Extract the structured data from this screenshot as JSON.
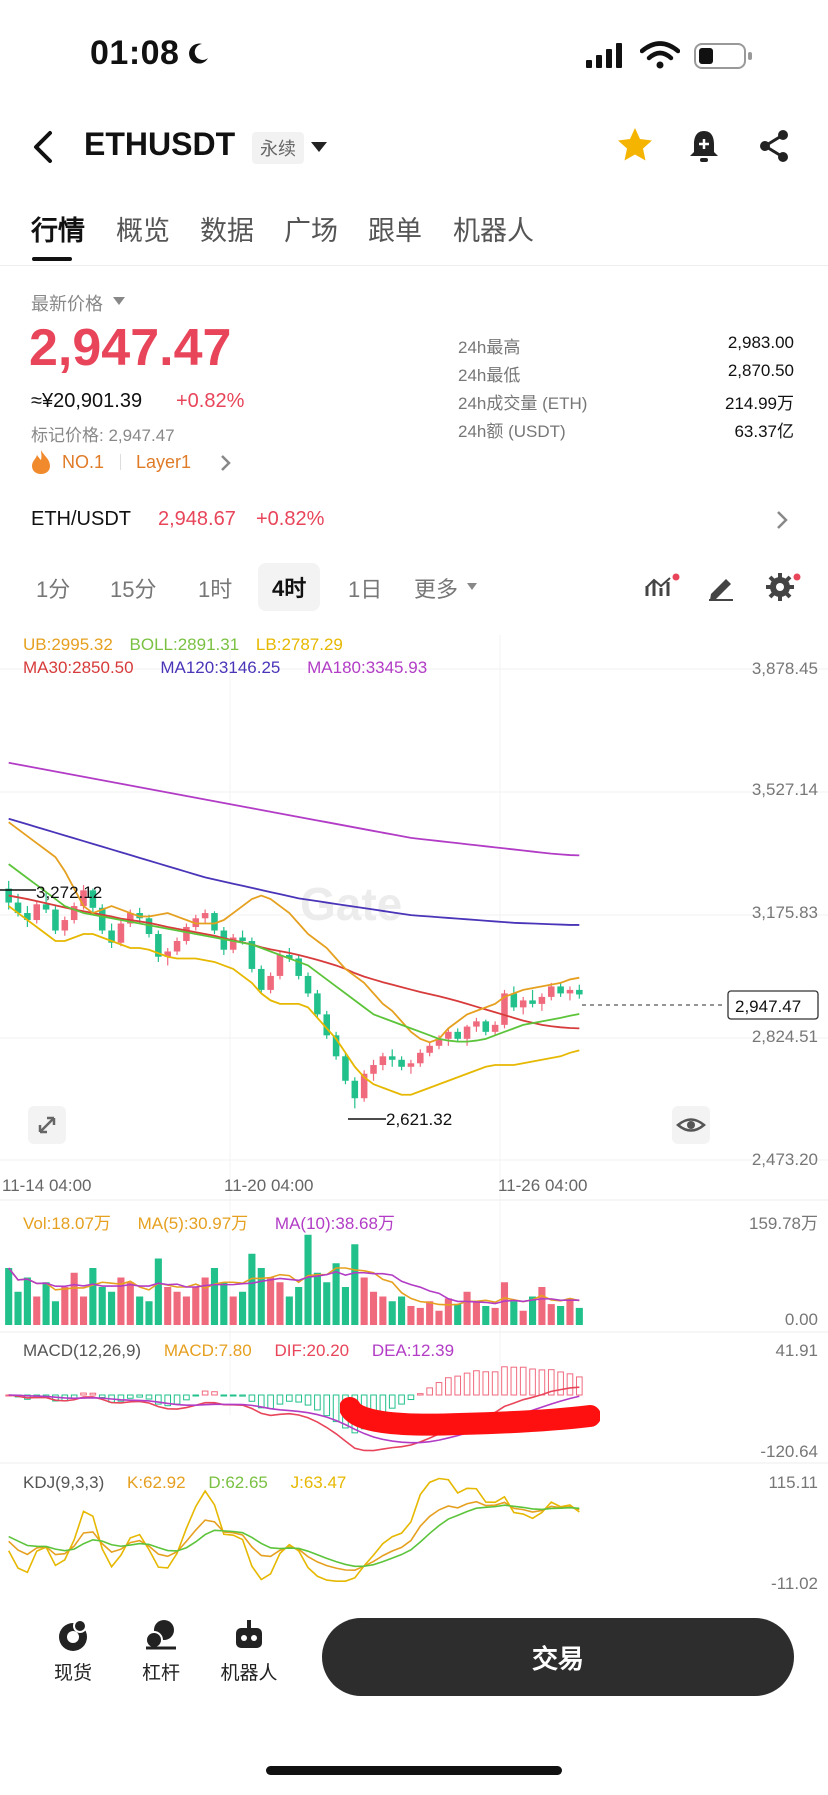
{
  "status_bar": {
    "time": "01:08"
  },
  "header": {
    "symbol": "ETHUSDT",
    "contract_tag": "永续"
  },
  "tabs": [
    {
      "label": "行情",
      "active": true
    },
    {
      "label": "概览"
    },
    {
      "label": "数据"
    },
    {
      "label": "广场"
    },
    {
      "label": "跟单"
    },
    {
      "label": "机器人"
    }
  ],
  "price": {
    "section_label": "最新价格",
    "last": "2,947.47",
    "cny": "≈¥20,901.39",
    "change": "+0.82%",
    "mark_price": "标记价格: 2,947.47",
    "rank": "NO.1",
    "category": "Layer1"
  },
  "stats": [
    {
      "label": "24h最高",
      "value": "2,983.00"
    },
    {
      "label": "24h最低",
      "value": "2,870.50"
    },
    {
      "label": "24h成交量 (ETH)",
      "value": "214.99万"
    },
    {
      "label": "24h额 (USDT)",
      "value": "63.37亿"
    }
  ],
  "spot": {
    "pair": "ETH/USDT",
    "price": "2,948.67",
    "change": "+0.82%"
  },
  "timeframes": [
    "1分",
    "15分",
    "1时",
    "4时",
    "1日",
    "更多"
  ],
  "active_timeframe": "4时",
  "indicators": {
    "boll": {
      "ub": "UB:2995.32",
      "boll": "BOLL:2891.31",
      "lb": "LB:2787.29"
    },
    "ma": {
      "ma30": "MA30:2850.50",
      "ma120": "MA120:3146.25",
      "ma180": "MA180:3345.93"
    },
    "vol": {
      "vol": "Vol:18.07万",
      "ma5": "MA(5):30.97万",
      "ma10": "MA(10):38.68万"
    },
    "macd": {
      "name": "MACD(12,26,9)",
      "macd": "MACD:7.80",
      "dif": "DIF:20.20",
      "dea": "DEA:12.39"
    },
    "kdj": {
      "name": "KDJ(9,3,3)",
      "k": "K:62.92",
      "d": "D:62.65",
      "j": "J:63.47"
    }
  },
  "chart_data": {
    "type": "candlestick",
    "price_axis": [
      "3,878.45",
      "3,527.14",
      "3,175.83",
      "2,824.51",
      "2,473.20"
    ],
    "x_ticks": [
      "11-14 04:00",
      "11-20 04:00",
      "11-26 04:00"
    ],
    "current_price_label": "2,947.47",
    "high_marker": "3,272.12",
    "low_marker": "2,621.32",
    "vol_axis": [
      "159.78万",
      "0.00"
    ],
    "macd_axis": [
      "41.91",
      "-120.64"
    ],
    "kdj_axis": [
      "115.11",
      "-11.02"
    ],
    "ylim": [
      2473.2,
      3878.45
    ],
    "ohlc": [
      [
        3250,
        3272,
        3190,
        3210
      ],
      [
        3210,
        3235,
        3170,
        3180
      ],
      [
        3180,
        3200,
        3140,
        3160
      ],
      [
        3160,
        3215,
        3150,
        3205
      ],
      [
        3205,
        3240,
        3180,
        3190
      ],
      [
        3190,
        3200,
        3120,
        3130
      ],
      [
        3130,
        3170,
        3115,
        3160
      ],
      [
        3160,
        3210,
        3150,
        3200
      ],
      [
        3200,
        3260,
        3190,
        3245
      ],
      [
        3245,
        3250,
        3180,
        3195
      ],
      [
        3195,
        3205,
        3120,
        3130
      ],
      [
        3130,
        3150,
        3080,
        3095
      ],
      [
        3095,
        3160,
        3085,
        3150
      ],
      [
        3150,
        3190,
        3140,
        3180
      ],
      [
        3180,
        3195,
        3150,
        3165
      ],
      [
        3165,
        3175,
        3110,
        3120
      ],
      [
        3120,
        3130,
        3040,
        3055
      ],
      [
        3055,
        3080,
        3030,
        3070
      ],
      [
        3070,
        3110,
        3060,
        3100
      ],
      [
        3100,
        3150,
        3090,
        3140
      ],
      [
        3140,
        3175,
        3130,
        3165
      ],
      [
        3165,
        3190,
        3150,
        3180
      ],
      [
        3180,
        3185,
        3120,
        3130
      ],
      [
        3130,
        3140,
        3060,
        3075
      ],
      [
        3075,
        3120,
        3065,
        3110
      ],
      [
        3110,
        3130,
        3090,
        3100
      ],
      [
        3100,
        3110,
        3010,
        3020
      ],
      [
        3020,
        3030,
        2950,
        2960
      ],
      [
        2960,
        3010,
        2950,
        3000
      ],
      [
        3000,
        3070,
        2990,
        3060
      ],
      [
        3060,
        3080,
        3040,
        3050
      ],
      [
        3050,
        3060,
        2990,
        3000
      ],
      [
        3000,
        3010,
        2940,
        2950
      ],
      [
        2950,
        2960,
        2880,
        2890
      ],
      [
        2890,
        2900,
        2820,
        2830
      ],
      [
        2830,
        2840,
        2760,
        2770
      ],
      [
        2770,
        2780,
        2690,
        2700
      ],
      [
        2700,
        2710,
        2621,
        2650
      ],
      [
        2650,
        2730,
        2640,
        2720
      ],
      [
        2720,
        2760,
        2700,
        2745
      ],
      [
        2745,
        2780,
        2730,
        2770
      ],
      [
        2770,
        2790,
        2740,
        2760
      ],
      [
        2760,
        2770,
        2730,
        2740
      ],
      [
        2740,
        2760,
        2720,
        2750
      ],
      [
        2750,
        2790,
        2740,
        2780
      ],
      [
        2780,
        2810,
        2770,
        2800
      ],
      [
        2800,
        2830,
        2790,
        2820
      ],
      [
        2820,
        2850,
        2800,
        2840
      ],
      [
        2840,
        2850,
        2810,
        2820
      ],
      [
        2820,
        2860,
        2800,
        2855
      ],
      [
        2855,
        2880,
        2840,
        2870
      ],
      [
        2870,
        2875,
        2830,
        2840
      ],
      [
        2840,
        2870,
        2830,
        2860
      ],
      [
        2860,
        2960,
        2850,
        2950
      ],
      [
        2950,
        2970,
        2900,
        2910
      ],
      [
        2910,
        2940,
        2890,
        2930
      ],
      [
        2930,
        2960,
        2910,
        2920
      ],
      [
        2920,
        2950,
        2900,
        2940
      ],
      [
        2940,
        2980,
        2930,
        2970
      ],
      [
        2970,
        2983,
        2940,
        2950
      ],
      [
        2950,
        2970,
        2930,
        2960
      ],
      [
        2960,
        2975,
        2935,
        2947
      ]
    ],
    "ma30": [
      3230,
      3225,
      3220,
      3214,
      3208,
      3202,
      3196,
      3190,
      3185,
      3180,
      3175,
      3170,
      3164,
      3160,
      3156,
      3152,
      3146,
      3140,
      3135,
      3130,
      3125,
      3120,
      3115,
      3108,
      3102,
      3096,
      3090,
      3082,
      3076,
      3071,
      3066,
      3060,
      3053,
      3046,
      3038,
      3030,
      3020,
      3008,
      2998,
      2990,
      2982,
      2975,
      2968,
      2961,
      2954,
      2948,
      2942,
      2935,
      2928,
      2920,
      2912,
      2904,
      2896,
      2888,
      2880,
      2872,
      2866,
      2860,
      2856,
      2853,
      2851,
      2850
    ],
    "ma120": [
      3450,
      3442,
      3434,
      3426,
      3418,
      3410,
      3402,
      3394,
      3386,
      3378,
      3370,
      3362,
      3354,
      3346,
      3338,
      3330,
      3322,
      3314,
      3306,
      3298,
      3290,
      3282,
      3276,
      3270,
      3264,
      3258,
      3252,
      3246,
      3240,
      3234,
      3228,
      3222,
      3218,
      3214,
      3210,
      3206,
      3202,
      3198,
      3194,
      3190,
      3186,
      3182,
      3178,
      3174,
      3172,
      3170,
      3168,
      3166,
      3164,
      3162,
      3160,
      3158,
      3156,
      3154,
      3152,
      3151,
      3150,
      3149,
      3148,
      3147,
      3146,
      3146
    ],
    "ma180": [
      3610,
      3605,
      3600,
      3595,
      3590,
      3585,
      3580,
      3575,
      3570,
      3565,
      3560,
      3555,
      3550,
      3545,
      3540,
      3535,
      3530,
      3525,
      3520,
      3515,
      3510,
      3505,
      3500,
      3495,
      3490,
      3485,
      3480,
      3475,
      3470,
      3465,
      3460,
      3455,
      3450,
      3445,
      3440,
      3435,
      3430,
      3425,
      3420,
      3415,
      3410,
      3405,
      3400,
      3395,
      3392,
      3389,
      3386,
      3383,
      3380,
      3377,
      3374,
      3371,
      3368,
      3365,
      3362,
      3359,
      3356,
      3353,
      3350,
      3348,
      3346,
      3345
    ],
    "boll_ub": [
      3440,
      3420,
      3400,
      3380,
      3360,
      3340,
      3300,
      3250,
      3200,
      3180,
      3190,
      3200,
      3190,
      3180,
      3170,
      3170,
      3175,
      3180,
      3170,
      3160,
      3150,
      3150,
      3150,
      3160,
      3180,
      3200,
      3220,
      3230,
      3220,
      3200,
      3180,
      3150,
      3120,
      3100,
      3080,
      3050,
      3020,
      3000,
      2980,
      2950,
      2920,
      2900,
      2870,
      2840,
      2820,
      2810,
      2820,
      2850,
      2870,
      2890,
      2900,
      2910,
      2920,
      2940,
      2950,
      2960,
      2965,
      2970,
      2975,
      2980,
      2990,
      2995
    ],
    "boll_mid": [
      3320,
      3300,
      3280,
      3260,
      3240,
      3220,
      3200,
      3190,
      3180,
      3175,
      3170,
      3165,
      3160,
      3155,
      3150,
      3145,
      3140,
      3135,
      3130,
      3125,
      3120,
      3115,
      3110,
      3105,
      3100,
      3095,
      3090,
      3080,
      3070,
      3060,
      3050,
      3040,
      3030,
      3010,
      2990,
      2970,
      2950,
      2930,
      2910,
      2890,
      2880,
      2870,
      2860,
      2850,
      2840,
      2830,
      2820,
      2815,
      2812,
      2812,
      2815,
      2820,
      2830,
      2840,
      2850,
      2860,
      2865,
      2870,
      2875,
      2880,
      2886,
      2891
    ],
    "boll_lb": [
      3200,
      3180,
      3160,
      3140,
      3120,
      3100,
      3100,
      3110,
      3120,
      3120,
      3110,
      3100,
      3090,
      3080,
      3080,
      3075,
      3065,
      3055,
      3050,
      3050,
      3050,
      3045,
      3040,
      3030,
      3020,
      3000,
      2980,
      2950,
      2930,
      2920,
      2920,
      2920,
      2910,
      2880,
      2850,
      2820,
      2780,
      2740,
      2710,
      2690,
      2680,
      2670,
      2660,
      2660,
      2670,
      2680,
      2690,
      2700,
      2710,
      2720,
      2730,
      2740,
      2745,
      2745,
      2745,
      2750,
      2755,
      2760,
      2765,
      2770,
      2780,
      2787
    ],
    "vol": [
      60,
      35,
      50,
      30,
      45,
      25,
      40,
      55,
      30,
      60,
      40,
      35,
      50,
      45,
      30,
      25,
      70,
      40,
      35,
      30,
      40,
      50,
      60,
      45,
      30,
      35,
      75,
      60,
      50,
      45,
      30,
      40,
      95,
      55,
      45,
      65,
      40,
      85,
      50,
      35,
      30,
      25,
      30,
      20,
      18,
      25,
      15,
      28,
      22,
      35,
      25,
      20,
      18,
      45,
      25,
      15,
      30,
      40,
      22,
      20,
      28,
      18
    ]
  }
}
